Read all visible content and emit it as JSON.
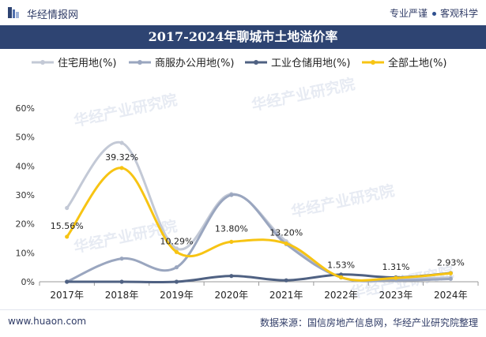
{
  "header": {
    "brand": "华经情报网",
    "tagline_left": "专业严谨",
    "tagline_right": "客观科学"
  },
  "colors": {
    "brand": "#2e4472",
    "series": [
      "#c3c9d6",
      "#9aa6bf",
      "#4f6182",
      "#f7c413"
    ]
  },
  "watermark": "华经产业研究院",
  "chart_data": {
    "type": "line",
    "title": "2017-2024年聊城市土地溢价率",
    "categories": [
      "2017年",
      "2018年",
      "2019年",
      "2020年",
      "2021年",
      "2022年",
      "2023年",
      "2024年"
    ],
    "yticks": [
      "0%",
      "10%",
      "20%",
      "30%",
      "40%",
      "50%",
      "60%"
    ],
    "ylim": [
      0,
      60
    ],
    "legend_position": "top",
    "smooth": true,
    "series": [
      {
        "name": "住宅用地(%)",
        "values": [
          25.5,
          48.0,
          11.5,
          30.3,
          14.0,
          1.5,
          1.0,
          1.5
        ]
      },
      {
        "name": "商服办公用地(%)",
        "values": [
          0.0,
          8.0,
          5.0,
          30.0,
          13.0,
          1.5,
          0.5,
          1.0
        ]
      },
      {
        "name": "工业仓储用地(%)",
        "values": [
          0.0,
          0.0,
          0.0,
          2.0,
          0.5,
          2.5,
          1.5,
          3.0
        ]
      },
      {
        "name": "全部土地(%)",
        "values": [
          15.56,
          39.32,
          10.29,
          13.8,
          13.2,
          1.53,
          1.31,
          2.93
        ],
        "data_labels": [
          "15.56%",
          "39.32%",
          "10.29%",
          "13.80%",
          "13.20%",
          "1.53%",
          "1.31%",
          "2.93%"
        ]
      }
    ]
  },
  "footer": {
    "url": "www.huaon.com",
    "source": "数据来源：国信房地产信息网，华经产业研究院整理"
  }
}
